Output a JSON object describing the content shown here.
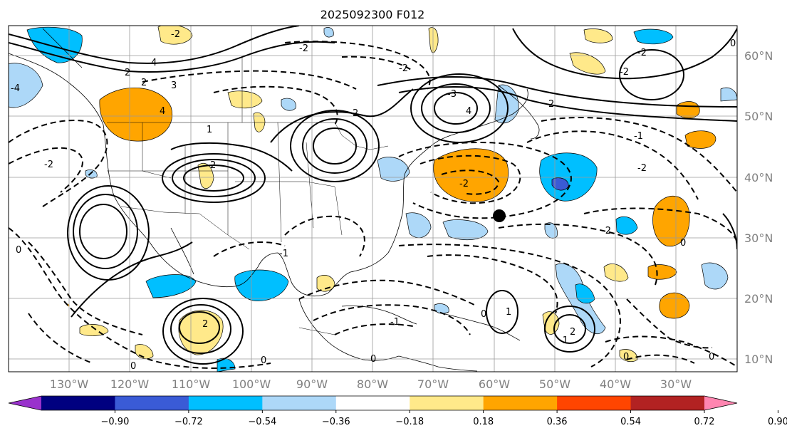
{
  "title": "2025092300 F012",
  "lon_labels": [
    "130°W",
    "120°W",
    "110°W",
    "100°W",
    "90°W",
    "80°W",
    "70°W",
    "60°W",
    "50°W",
    "40°W",
    "30°W"
  ],
  "lat_labels": [
    "60°N",
    "50°N",
    "40°N",
    "30°N",
    "20°N",
    "10°N"
  ],
  "colorbar": {
    "ticks": [
      "−0.90",
      "−0.72",
      "−0.54",
      "−0.36",
      "−0.18",
      "0.18",
      "0.36",
      "0.54",
      "0.72",
      "0.90"
    ],
    "colors": [
      "#9932cc",
      "#000080",
      "#3a5bd6",
      "#00bfff",
      "#add8f8",
      "#ffffff",
      "#ffe98a",
      "#ffa500",
      "#ff4500",
      "#b22222",
      "#ff85b0"
    ]
  },
  "contour_labels": [
    "2",
    "4",
    "2",
    "3",
    "1",
    "-3",
    "4",
    "-2",
    "2",
    "-1",
    "2",
    "-2",
    "-1",
    "2",
    "-2",
    "-2",
    "-1",
    "0",
    "1",
    "-2",
    "2",
    "-2",
    "4",
    "0",
    "0",
    "0",
    "-2",
    "-4",
    "2",
    "0",
    "-1",
    "0",
    "0",
    "0",
    "0",
    "-2",
    "-2"
  ],
  "marker": "storm-center"
}
